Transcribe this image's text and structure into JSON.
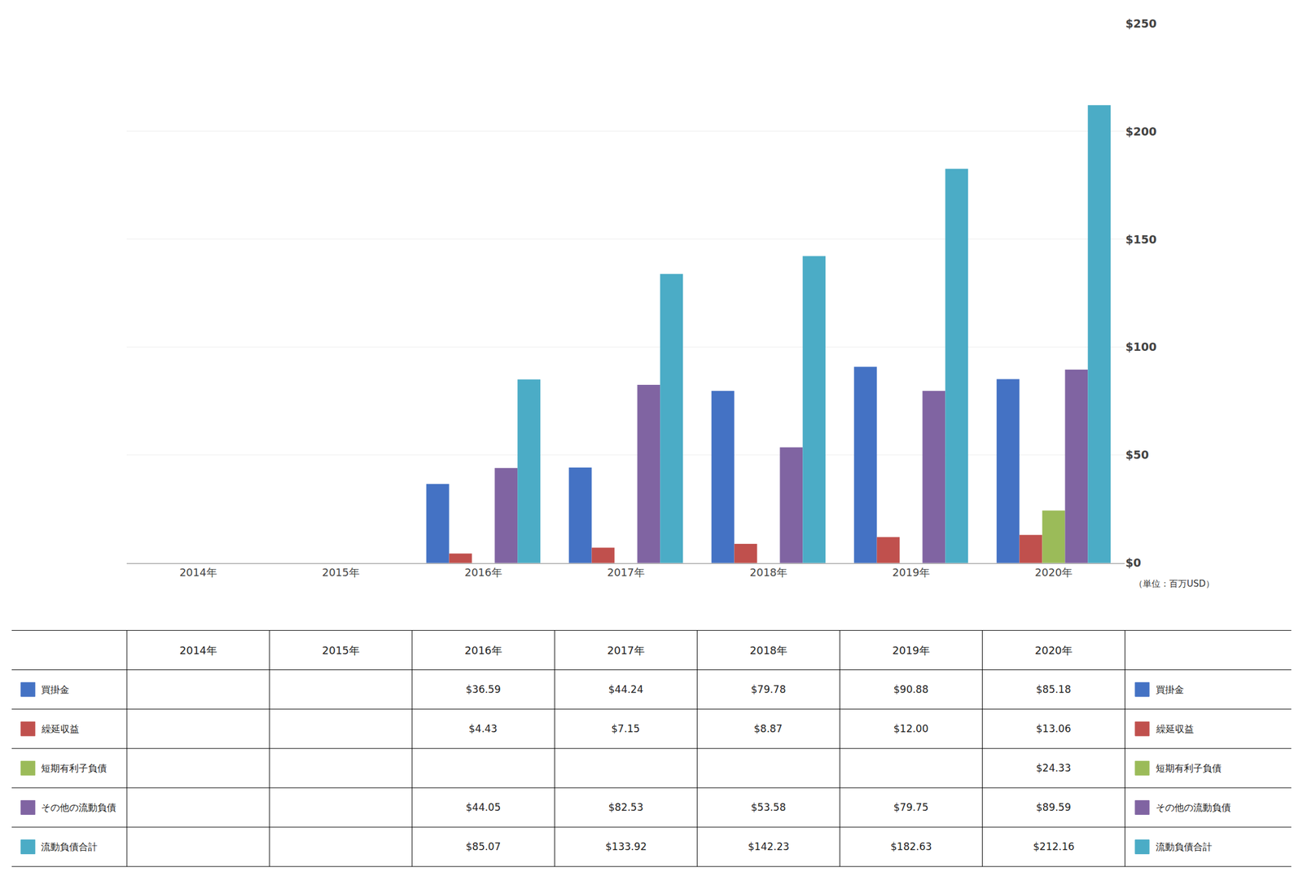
{
  "chart_data": {
    "type": "bar",
    "categories": [
      "2014年",
      "2015年",
      "2016年",
      "2017年",
      "2018年",
      "2019年",
      "2020年"
    ],
    "series": [
      {
        "name": "買掛金",
        "color": "#4472C4",
        "values": [
          null,
          null,
          36.59,
          44.24,
          79.78,
          90.88,
          85.18
        ],
        "value_labels": [
          null,
          null,
          "$36.59",
          "$44.24",
          "$79.78",
          "$90.88",
          "$85.18"
        ]
      },
      {
        "name": "繰延収益",
        "color": "#C0504D",
        "values": [
          null,
          null,
          4.43,
          7.15,
          8.87,
          12.0,
          13.06
        ],
        "value_labels": [
          null,
          null,
          "$4.43",
          "$7.15",
          "$8.87",
          "$12.00",
          "$13.06"
        ]
      },
      {
        "name": "短期有利子負債",
        "color": "#9BBB59",
        "values": [
          null,
          null,
          null,
          null,
          null,
          null,
          24.33
        ],
        "value_labels": [
          null,
          null,
          null,
          null,
          null,
          null,
          "$24.33"
        ]
      },
      {
        "name": "その他の流動負債",
        "color": "#8064A2",
        "values": [
          null,
          null,
          44.05,
          82.53,
          53.58,
          79.75,
          89.59
        ],
        "value_labels": [
          null,
          null,
          "$44.05",
          "$82.53",
          "$53.58",
          "$79.75",
          "$89.59"
        ]
      },
      {
        "name": "流動負債合計",
        "color": "#4BACC6",
        "values": [
          null,
          null,
          85.07,
          133.92,
          142.23,
          182.63,
          212.16
        ],
        "value_labels": [
          null,
          null,
          "$85.07",
          "$133.92",
          "$142.23",
          "$182.63",
          "$212.16"
        ]
      }
    ],
    "ylim": [
      0,
      250
    ],
    "yticks": [
      {
        "value": 0,
        "label": "$0"
      },
      {
        "value": 50,
        "label": "$50"
      },
      {
        "value": 100,
        "label": "$100"
      },
      {
        "value": 150,
        "label": "$150"
      },
      {
        "value": 200,
        "label": "$200"
      },
      {
        "value": 250,
        "label": "$250"
      }
    ],
    "grid": true,
    "annotations": [
      "（単位：百万USD）"
    ]
  }
}
